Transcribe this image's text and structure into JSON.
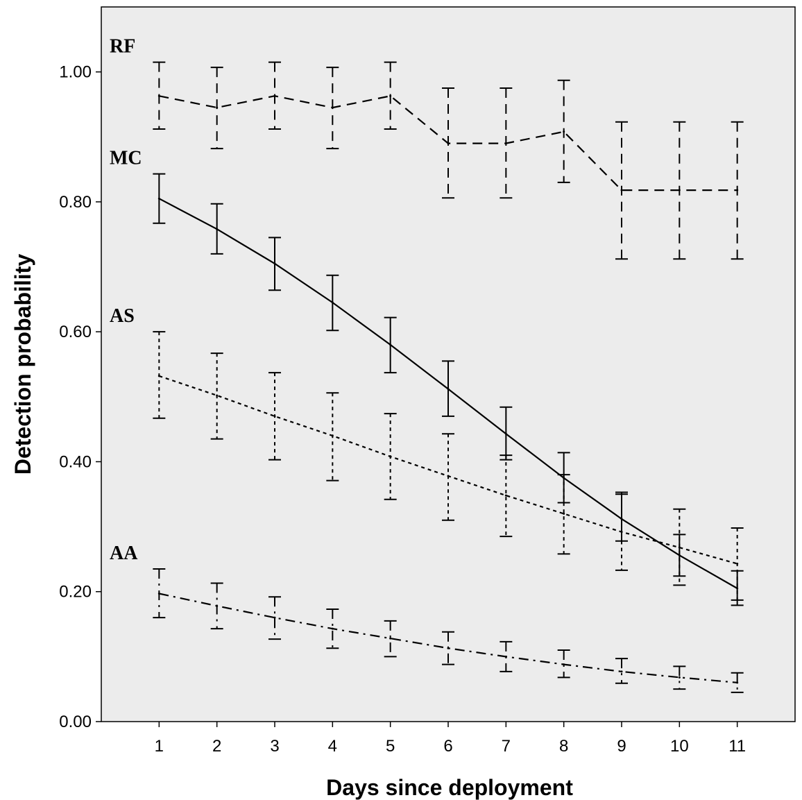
{
  "chart_data": {
    "type": "line",
    "title": "",
    "xlabel": "Days since deployment",
    "ylabel": "Detection probability",
    "x": [
      1,
      2,
      3,
      4,
      5,
      6,
      7,
      8,
      9,
      10,
      11
    ],
    "xlim": [
      0,
      12
    ],
    "ylim": [
      0,
      1.1
    ],
    "yticks": [
      0.0,
      0.2,
      0.4,
      0.6,
      0.8,
      1.0
    ],
    "ytick_labels": [
      "0.00",
      "0.20",
      "0.40",
      "0.60",
      "0.80",
      "1.00"
    ],
    "grid": false,
    "legend": "none",
    "series": [
      {
        "name": "RF",
        "line_style": "dashed",
        "values": [
          0.963,
          0.945,
          0.963,
          0.945,
          0.963,
          0.89,
          0.89,
          0.908,
          0.818,
          0.818,
          0.818
        ],
        "lower": [
          0.912,
          0.882,
          0.912,
          0.882,
          0.912,
          0.806,
          0.806,
          0.83,
          0.712,
          0.712,
          0.712
        ],
        "upper": [
          1.015,
          1.007,
          1.015,
          1.007,
          1.015,
          0.975,
          0.975,
          0.987,
          0.923,
          0.923,
          0.923
        ]
      },
      {
        "name": "MC",
        "line_style": "solid",
        "values": [
          0.805,
          0.758,
          0.705,
          0.645,
          0.58,
          0.512,
          0.443,
          0.375,
          0.312,
          0.256,
          0.205
        ],
        "lower": [
          0.767,
          0.72,
          0.664,
          0.602,
          0.537,
          0.47,
          0.403,
          0.337,
          0.278,
          0.224,
          0.179
        ],
        "upper": [
          0.843,
          0.797,
          0.745,
          0.687,
          0.622,
          0.555,
          0.484,
          0.414,
          0.35,
          0.288,
          0.232
        ]
      },
      {
        "name": "AS",
        "line_style": "dotted",
        "values": [
          0.532,
          0.502,
          0.47,
          0.44,
          0.408,
          0.378,
          0.348,
          0.32,
          0.292,
          0.268,
          0.243
        ],
        "lower": [
          0.467,
          0.435,
          0.403,
          0.371,
          0.342,
          0.31,
          0.285,
          0.258,
          0.233,
          0.21,
          0.187
        ],
        "upper": [
          0.6,
          0.567,
          0.537,
          0.506,
          0.474,
          0.443,
          0.41,
          0.38,
          0.353,
          0.327,
          0.298
        ]
      },
      {
        "name": "AA",
        "line_style": "dashdot",
        "values": [
          0.197,
          0.178,
          0.16,
          0.143,
          0.128,
          0.113,
          0.1,
          0.088,
          0.077,
          0.068,
          0.06
        ],
        "lower": [
          0.16,
          0.143,
          0.127,
          0.113,
          0.1,
          0.088,
          0.077,
          0.068,
          0.059,
          0.05,
          0.045
        ],
        "upper": [
          0.235,
          0.213,
          0.192,
          0.173,
          0.155,
          0.138,
          0.123,
          0.11,
          0.097,
          0.085,
          0.075
        ]
      }
    ]
  }
}
